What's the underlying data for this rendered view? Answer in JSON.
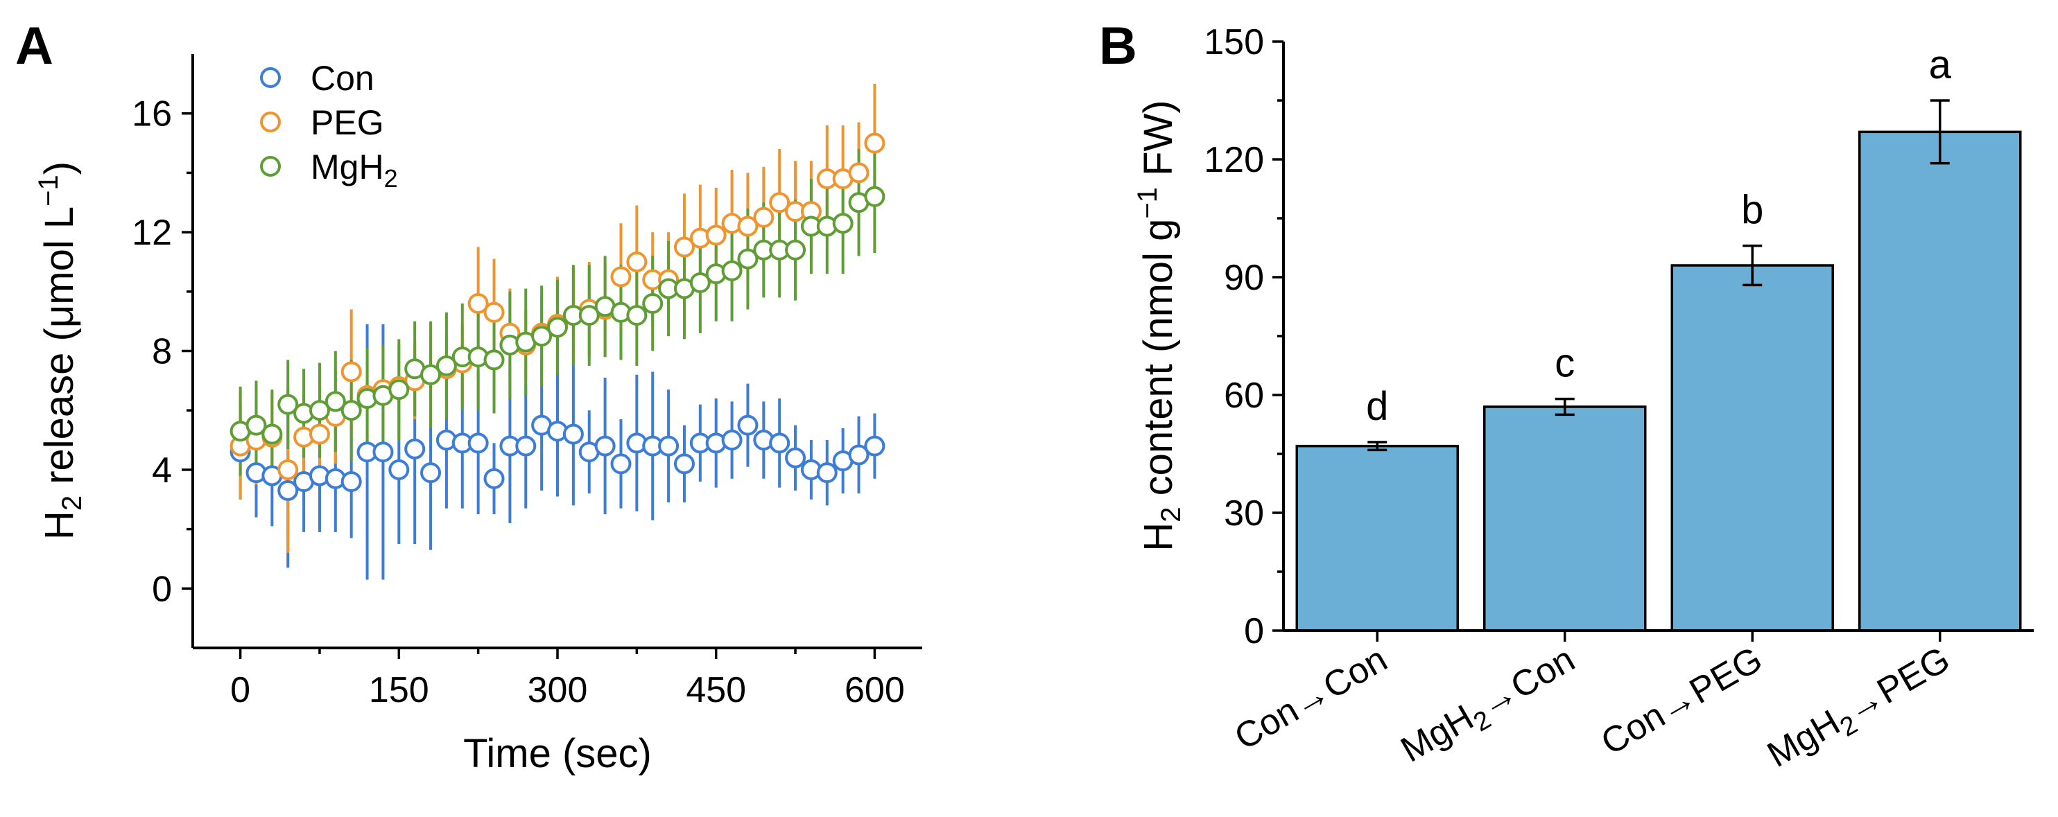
{
  "chart_data": [
    {
      "panel": "A",
      "type": "scatter",
      "xlabel": "Time (sec)",
      "ylabel": {
        "prefix": "H",
        "sub": "2",
        "mid": " release (μmol L",
        "sup": "−1",
        "suffix": ")"
      },
      "xlim": [
        -45,
        645
      ],
      "ylim": [
        -2,
        18
      ],
      "xticks": [
        "0",
        "150",
        "300",
        "450",
        "600"
      ],
      "yticks": [
        "0",
        "4",
        "8",
        "12",
        "16"
      ],
      "series": [
        {
          "name": "Con",
          "legend": {
            "base": "Con",
            "sub": ""
          },
          "color": "#3B7DD8",
          "x": [
            0,
            15,
            30,
            45,
            60,
            75,
            90,
            105,
            120,
            135,
            150,
            165,
            180,
            195,
            210,
            225,
            240,
            255,
            270,
            285,
            300,
            315,
            330,
            345,
            360,
            375,
            390,
            405,
            420,
            435,
            450,
            465,
            480,
            495,
            510,
            525,
            540,
            555,
            570,
            585,
            600
          ],
          "y": [
            4.6,
            3.9,
            3.8,
            3.3,
            3.6,
            3.8,
            3.7,
            3.6,
            4.6,
            4.6,
            4.0,
            4.7,
            3.9,
            5.0,
            4.9,
            4.9,
            3.7,
            4.8,
            4.8,
            5.5,
            5.3,
            5.2,
            4.6,
            4.8,
            4.2,
            4.9,
            4.8,
            4.8,
            4.2,
            4.9,
            4.9,
            5.0,
            5.5,
            5.0,
            4.9,
            4.4,
            4.0,
            3.9,
            4.3,
            4.5,
            4.8
          ],
          "err": [
            1.6,
            1.5,
            1.7,
            2.6,
            1.7,
            1.9,
            1.8,
            1.9,
            4.3,
            4.3,
            2.5,
            3.2,
            2.6,
            2.3,
            2.2,
            2.4,
            1.2,
            2.6,
            2.1,
            2.2,
            2.2,
            2.4,
            1.4,
            2.3,
            1.5,
            2.3,
            2.5,
            1.9,
            1.3,
            1.3,
            1.5,
            1.3,
            1.4,
            1.3,
            1.5,
            1.1,
            1.0,
            1.1,
            1.1,
            1.3,
            1.1
          ]
        },
        {
          "name": "PEG",
          "legend": {
            "base": "PEG",
            "sub": ""
          },
          "color": "#F0952D",
          "x": [
            0,
            15,
            30,
            45,
            60,
            75,
            90,
            105,
            120,
            135,
            150,
            165,
            180,
            195,
            210,
            225,
            240,
            255,
            270,
            285,
            300,
            315,
            330,
            345,
            360,
            375,
            390,
            405,
            420,
            435,
            450,
            465,
            480,
            495,
            510,
            525,
            540,
            555,
            570,
            585,
            600
          ],
          "y": [
            4.8,
            5.0,
            5.1,
            4.0,
            5.1,
            5.2,
            5.8,
            7.3,
            6.5,
            6.7,
            6.8,
            7.0,
            7.2,
            7.4,
            7.6,
            9.6,
            9.3,
            8.6,
            8.2,
            8.6,
            8.9,
            9.2,
            9.4,
            9.4,
            10.5,
            11.0,
            10.4,
            10.4,
            11.5,
            11.8,
            11.9,
            12.3,
            12.2,
            12.5,
            13.0,
            12.7,
            12.7,
            13.8,
            13.8,
            14.0,
            15.0
          ],
          "err": [
            1.8,
            1.5,
            1.5,
            2.8,
            1.5,
            1.7,
            1.6,
            2.1,
            1.6,
            1.5,
            1.4,
            1.3,
            1.3,
            1.2,
            1.3,
            1.9,
            1.8,
            1.5,
            1.2,
            1.3,
            1.6,
            1.6,
            1.6,
            1.6,
            1.8,
            1.9,
            1.6,
            1.6,
            1.8,
            1.8,
            1.6,
            1.8,
            1.8,
            1.7,
            1.8,
            1.7,
            1.7,
            1.8,
            1.8,
            1.7,
            2.0
          ]
        },
        {
          "name": "MgH2",
          "legend": {
            "base": "MgH",
            "sub": "2"
          },
          "color": "#5E9E34",
          "x": [
            0,
            15,
            30,
            45,
            60,
            75,
            90,
            105,
            120,
            135,
            150,
            165,
            180,
            195,
            210,
            225,
            240,
            255,
            270,
            285,
            300,
            315,
            330,
            345,
            360,
            375,
            390,
            405,
            420,
            435,
            450,
            465,
            480,
            495,
            510,
            525,
            540,
            555,
            570,
            585,
            600
          ],
          "y": [
            5.3,
            5.5,
            5.2,
            6.2,
            5.9,
            6.0,
            6.3,
            6.0,
            6.4,
            6.5,
            6.7,
            7.4,
            7.2,
            7.5,
            7.8,
            7.8,
            7.7,
            8.2,
            8.3,
            8.5,
            8.8,
            9.2,
            9.2,
            9.5,
            9.3,
            9.2,
            9.6,
            10.1,
            10.1,
            10.3,
            10.6,
            10.7,
            11.1,
            11.4,
            11.4,
            11.4,
            12.2,
            12.2,
            12.3,
            13.0,
            13.2
          ],
          "err": [
            1.5,
            1.5,
            1.5,
            1.5,
            1.5,
            1.6,
            1.7,
            1.7,
            1.7,
            1.7,
            1.7,
            1.6,
            1.8,
            1.8,
            1.8,
            1.8,
            1.8,
            1.8,
            1.8,
            1.7,
            1.6,
            1.7,
            1.7,
            1.7,
            1.6,
            1.7,
            1.6,
            1.6,
            1.7,
            1.7,
            1.6,
            1.7,
            1.7,
            1.6,
            1.6,
            1.7,
            1.6,
            1.6,
            1.7,
            1.8,
            1.9
          ]
        }
      ],
      "legend_position": "top-left"
    },
    {
      "panel": "B",
      "type": "bar",
      "ylabel": {
        "prefix": "H",
        "sub": "2",
        "mid": " content (nmol g",
        "sup": "−1",
        "suffix": " FW)"
      },
      "ylim": [
        0,
        150
      ],
      "yticks": [
        "0",
        "30",
        "60",
        "90",
        "120",
        "150"
      ],
      "categories": [
        {
          "a": "Con",
          "asub": "",
          "b": "Con",
          "bsub": ""
        },
        {
          "a": "MgH",
          "asub": "2",
          "b": "Con",
          "bsub": ""
        },
        {
          "a": "Con",
          "asub": "",
          "b": "PEG",
          "bsub": ""
        },
        {
          "a": "MgH",
          "asub": "2",
          "b": "PEG",
          "bsub": ""
        }
      ],
      "arrow": "→",
      "values": [
        47,
        57,
        93,
        127
      ],
      "err": [
        1,
        2,
        5,
        8
      ],
      "letters": [
        "d",
        "c",
        "b",
        "a"
      ],
      "bar_color": "#6BAED6"
    }
  ],
  "panels": {
    "A": "A",
    "B": "B"
  }
}
